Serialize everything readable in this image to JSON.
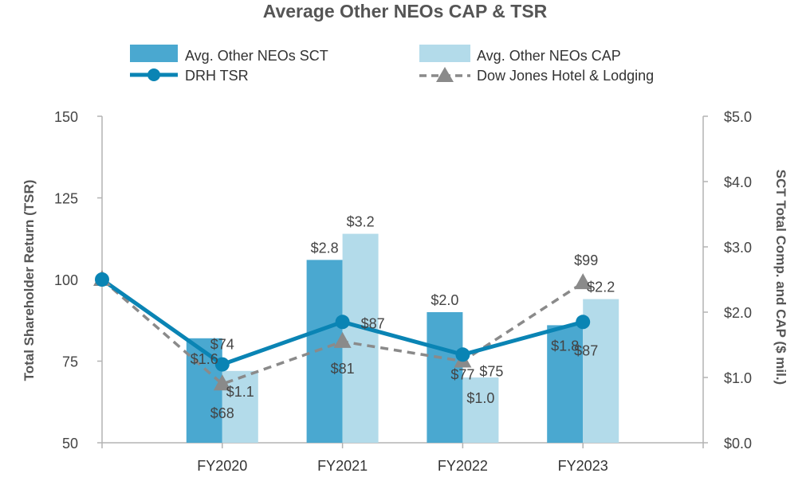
{
  "chart_data": {
    "type": "bar",
    "title": "Average Other NEOs CAP & TSR",
    "categories": [
      "FY2020",
      "FY2021",
      "FY2022",
      "FY2023"
    ],
    "y_left_label": "Total Shareholder Return (TSR)",
    "y_right_label": "SCT Total Comp. and CAP ($ mil.)",
    "y_left_lim": [
      50,
      150
    ],
    "y_right_lim": [
      0,
      5
    ],
    "y_left_ticks": [
      "50",
      "75",
      "100",
      "125",
      "150"
    ],
    "y_right_ticks": [
      "$0.0",
      "$1.0",
      "$2.0",
      "$3.0",
      "$4.0",
      "$5.0"
    ],
    "legend": {
      "sct": "Avg. Other NEOs SCT",
      "cap": "Avg. Other NEOs CAP",
      "drh": "DRH TSR",
      "dj": "Dow Jones Hotel & Lodging"
    },
    "bar_series": [
      {
        "name": "Avg. Other NEOs SCT",
        "color": "#4aa8d0",
        "values": [
          1.6,
          2.8,
          2.0,
          1.8
        ],
        "labels": [
          "$1.6",
          "$2.8",
          "$2.0",
          "$1.8"
        ]
      },
      {
        "name": "Avg. Other NEOs CAP",
        "color": "#b3dbea",
        "values": [
          1.1,
          3.2,
          1.0,
          2.2
        ],
        "labels": [
          "$1.1",
          "$3.2",
          "$1.0",
          "$2.2"
        ]
      }
    ],
    "line_series": [
      {
        "name": "DRH TSR",
        "color": "#0a84b4",
        "values": [
          100,
          74,
          87,
          77,
          87
        ],
        "labels": [
          "",
          "$74",
          "$87",
          "$77",
          "$87"
        ]
      },
      {
        "name": "Dow Jones Hotel & Lodging",
        "color": "#8a8a8a",
        "values": [
          100,
          68,
          81,
          75,
          99
        ],
        "labels": [
          "",
          "$68",
          "$81",
          "$75",
          "$99"
        ]
      }
    ]
  }
}
